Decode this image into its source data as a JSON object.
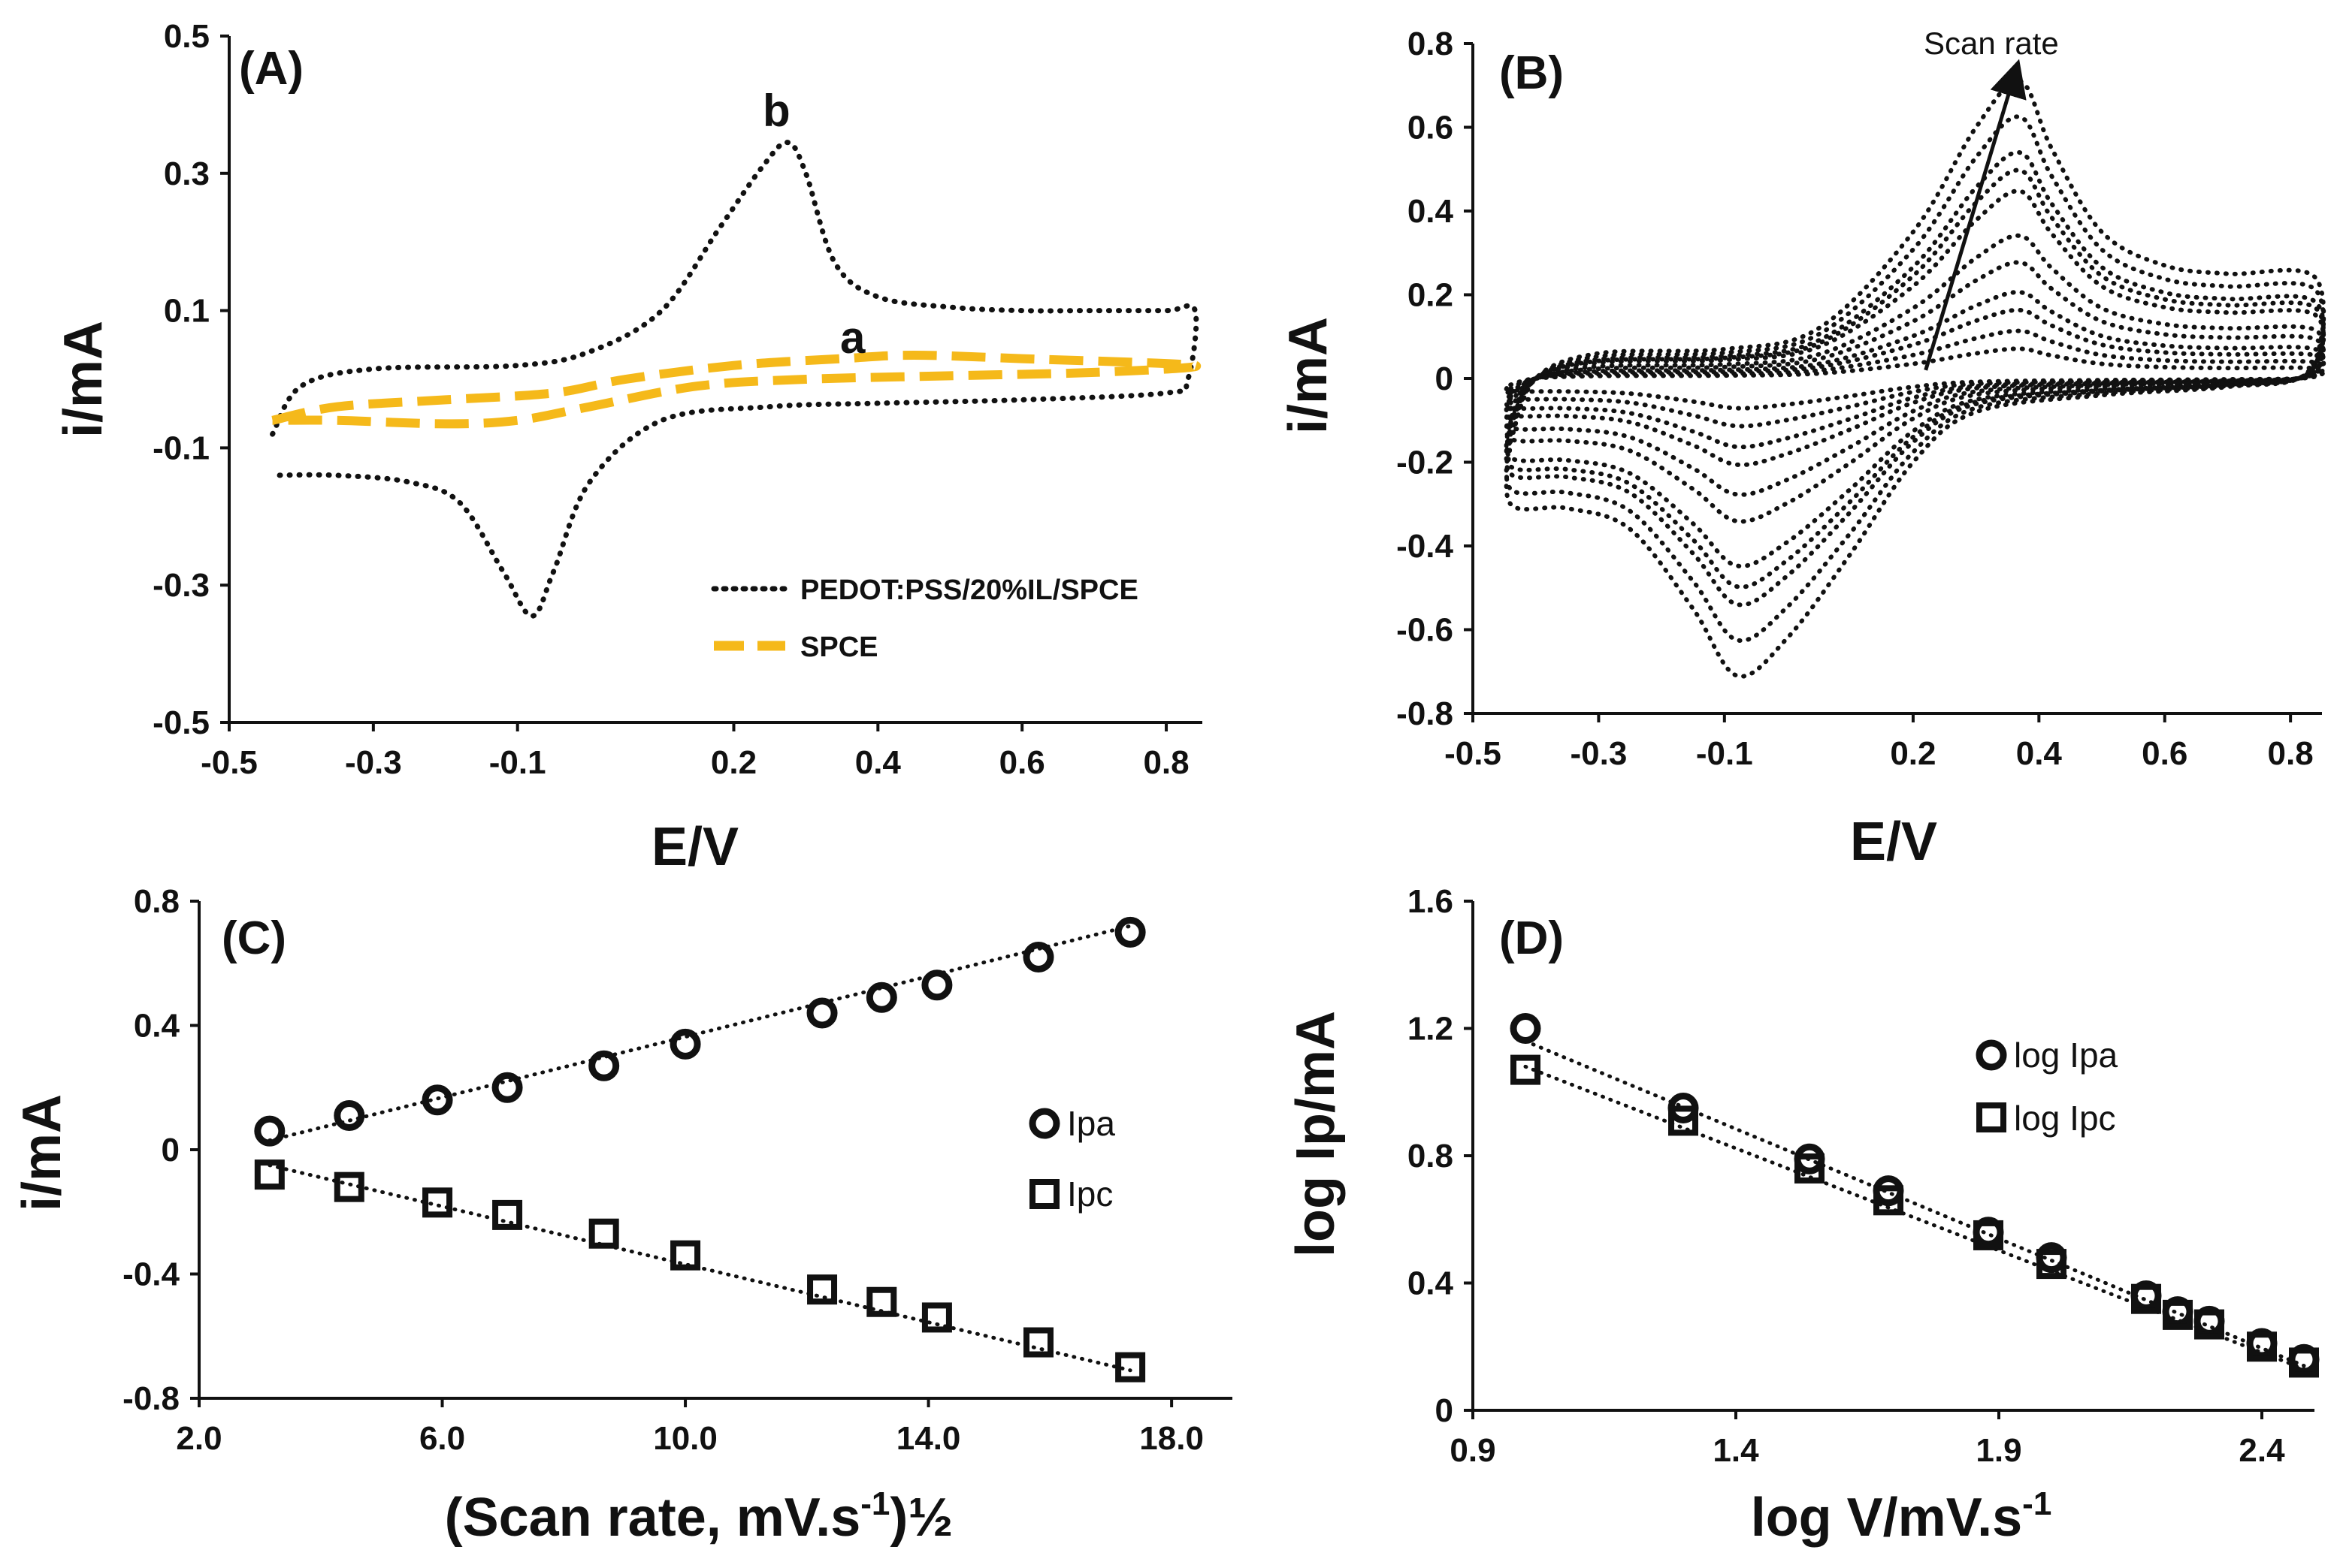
{
  "colors": {
    "ink": "#111111",
    "spce": "#f5b91a"
  },
  "chart_data": [
    {
      "id": "A",
      "type": "line",
      "panel_label": "(A)",
      "xlabel": "E/V",
      "ylabel": "i/mA",
      "xlim": [
        -0.5,
        0.85
      ],
      "ylim": [
        -0.5,
        0.5
      ],
      "xticks": [
        "-0.5",
        "-0.3",
        "-0.1",
        "0.2",
        "0.4",
        "0.6",
        "0.8"
      ],
      "yticks": [
        "-0.5",
        "-0.3",
        "-0.1",
        "0.1",
        "0.3",
        "0.5"
      ],
      "series": [
        {
          "name": "PEDOT:PSS/20%IL/SPCE",
          "style": "dotted",
          "curve_label": "b",
          "forward": [
            [
              -0.44,
              -0.08
            ],
            [
              -0.4,
              -0.01
            ],
            [
              -0.3,
              0.015
            ],
            [
              -0.1,
              0.02
            ],
            [
              0.0,
              0.04
            ],
            [
              0.1,
              0.1
            ],
            [
              0.18,
              0.22
            ],
            [
              0.24,
              0.31
            ],
            [
              0.275,
              0.345
            ],
            [
              0.3,
              0.3
            ],
            [
              0.34,
              0.17
            ],
            [
              0.4,
              0.12
            ],
            [
              0.5,
              0.105
            ],
            [
              0.6,
              0.1
            ],
            [
              0.7,
              0.1
            ],
            [
              0.8,
              0.1
            ],
            [
              0.84,
              0.1
            ]
          ],
          "reverse": [
            [
              0.84,
              0.1
            ],
            [
              0.83,
              0.0
            ],
            [
              0.8,
              -0.02
            ],
            [
              0.6,
              -0.03
            ],
            [
              0.4,
              -0.035
            ],
            [
              0.25,
              -0.04
            ],
            [
              0.1,
              -0.06
            ],
            [
              0.0,
              -0.15
            ],
            [
              -0.05,
              -0.28
            ],
            [
              -0.08,
              -0.345
            ],
            [
              -0.12,
              -0.28
            ],
            [
              -0.18,
              -0.18
            ],
            [
              -0.25,
              -0.15
            ],
            [
              -0.35,
              -0.14
            ],
            [
              -0.44,
              -0.14
            ]
          ]
        },
        {
          "name": "SPCE",
          "style": "dashed",
          "curve_label": "a",
          "forward": [
            [
              -0.44,
              -0.06
            ],
            [
              -0.35,
              -0.04
            ],
            [
              -0.2,
              -0.03
            ],
            [
              -0.05,
              -0.02
            ],
            [
              0.05,
              0.0
            ],
            [
              0.2,
              0.02
            ],
            [
              0.35,
              0.03
            ],
            [
              0.45,
              0.035
            ],
            [
              0.6,
              0.03
            ],
            [
              0.84,
              0.02
            ]
          ],
          "reverse": [
            [
              0.84,
              0.02
            ],
            [
              0.7,
              0.01
            ],
            [
              0.5,
              0.005
            ],
            [
              0.3,
              0.0
            ],
            [
              0.15,
              -0.01
            ],
            [
              0.0,
              -0.04
            ],
            [
              -0.1,
              -0.06
            ],
            [
              -0.2,
              -0.065
            ],
            [
              -0.35,
              -0.06
            ],
            [
              -0.44,
              -0.06
            ]
          ]
        }
      ],
      "legend": [
        "PEDOT:PSS/20%IL/SPCE",
        "SPCE"
      ]
    },
    {
      "id": "B",
      "type": "line",
      "panel_label": "(B)",
      "xlabel": "E/V",
      "ylabel": "i/mA",
      "xlim": [
        -0.5,
        0.85
      ],
      "ylim": [
        -0.8,
        0.8
      ],
      "xticks": [
        "-0.5",
        "-0.3",
        "-0.1",
        "0.2",
        "0.4",
        "0.6",
        "0.8"
      ],
      "yticks": [
        "-0.8",
        "-0.6",
        "-0.4",
        "-0.2",
        "0",
        "0.2",
        "0.4",
        "0.6",
        "0.8"
      ],
      "annotation": "Scan rate",
      "arrow": [
        [
          0.22,
          0.02
        ],
        [
          0.36,
          0.72
        ]
      ],
      "scan_factors": [
        0.1,
        0.16,
        0.23,
        0.29,
        0.39,
        0.48,
        0.63,
        0.7,
        0.76,
        0.88,
        1.0
      ],
      "template": {
        "anodic_peak": 0.71,
        "cathodic_peak": -0.71,
        "forward": [
          [
            -0.44,
            -0.15
          ],
          [
            -0.4,
            0.0
          ],
          [
            -0.3,
            0.06
          ],
          [
            -0.1,
            0.07
          ],
          [
            0.05,
            0.12
          ],
          [
            0.2,
            0.35
          ],
          [
            0.3,
            0.6
          ],
          [
            0.37,
            0.71
          ],
          [
            0.42,
            0.55
          ],
          [
            0.5,
            0.35
          ],
          [
            0.6,
            0.27
          ],
          [
            0.7,
            0.25
          ],
          [
            0.84,
            0.24
          ]
        ],
        "reverse": [
          [
            0.84,
            0.24
          ],
          [
            0.83,
            0.02
          ],
          [
            0.7,
            -0.02
          ],
          [
            0.5,
            -0.04
          ],
          [
            0.3,
            -0.08
          ],
          [
            0.2,
            -0.2
          ],
          [
            0.1,
            -0.42
          ],
          [
            0.0,
            -0.62
          ],
          [
            -0.08,
            -0.71
          ],
          [
            -0.15,
            -0.55
          ],
          [
            -0.25,
            -0.36
          ],
          [
            -0.35,
            -0.31
          ],
          [
            -0.44,
            -0.3
          ],
          [
            -0.44,
            -0.15
          ]
        ]
      }
    },
    {
      "id": "C",
      "type": "scatter",
      "panel_label": "(C)",
      "xlabel": "(Scan rate, mV.s",
      "xlabel_sup": "-1",
      "xlabel_end": ")½",
      "ylabel": "i/mA",
      "xlim": [
        2.0,
        19.0
      ],
      "ylim": [
        -0.8,
        0.8
      ],
      "xticks": [
        "2.0",
        "6.0",
        "10.0",
        "14.0",
        "18.0"
      ],
      "yticks": [
        "-0.8",
        "-0.4",
        "0",
        "0.4",
        "0.8"
      ],
      "x": [
        3.16,
        4.47,
        5.92,
        7.07,
        8.66,
        10.0,
        12.25,
        13.23,
        14.14,
        15.81,
        17.32
      ],
      "series": [
        {
          "name": "Ipa",
          "marker": "circle",
          "values": [
            0.06,
            0.11,
            0.16,
            0.2,
            0.27,
            0.34,
            0.44,
            0.49,
            0.53,
            0.62,
            0.7
          ],
          "fit": [
            [
              3.16,
              0.03
            ],
            [
              17.32,
              0.72
            ]
          ]
        },
        {
          "name": "Ipc",
          "marker": "square",
          "values": [
            -0.08,
            -0.12,
            -0.17,
            -0.21,
            -0.27,
            -0.34,
            -0.45,
            -0.49,
            -0.54,
            -0.62,
            -0.7
          ],
          "fit": [
            [
              3.16,
              -0.05
            ],
            [
              17.32,
              -0.71
            ]
          ]
        }
      ],
      "legend": [
        "Ipa",
        "Ipc"
      ]
    },
    {
      "id": "D",
      "type": "scatter",
      "panel_label": "(D)",
      "xlabel": "log V/mV.s",
      "xlabel_sup": "-1",
      "ylabel": "log Ip/mA",
      "xlim": [
        0.9,
        2.5
      ],
      "ylim": [
        0,
        1.6
      ],
      "xticks": [
        "0.9",
        "1.4",
        "1.9",
        "2.4"
      ],
      "yticks": [
        "0",
        "0.4",
        "0.8",
        "1.2",
        "1.6"
      ],
      "x": [
        1.0,
        1.3,
        1.54,
        1.69,
        1.88,
        2.0,
        2.18,
        2.24,
        2.3,
        2.4,
        2.48
      ],
      "series": [
        {
          "name": "log Ipa",
          "marker": "circle",
          "values": [
            1.2,
            0.95,
            0.79,
            0.69,
            0.56,
            0.48,
            0.36,
            0.31,
            0.28,
            0.21,
            0.16
          ],
          "fit": [
            [
              1.0,
              1.16
            ],
            [
              2.48,
              0.14
            ]
          ]
        },
        {
          "name": "log Ipc",
          "marker": "square",
          "values": [
            1.07,
            0.91,
            0.76,
            0.66,
            0.55,
            0.46,
            0.35,
            0.3,
            0.27,
            0.2,
            0.15
          ],
          "fit": [
            [
              1.0,
              1.08
            ],
            [
              2.48,
              0.13
            ]
          ]
        }
      ],
      "legend": [
        "log Ipa",
        "log Ipc"
      ]
    }
  ]
}
